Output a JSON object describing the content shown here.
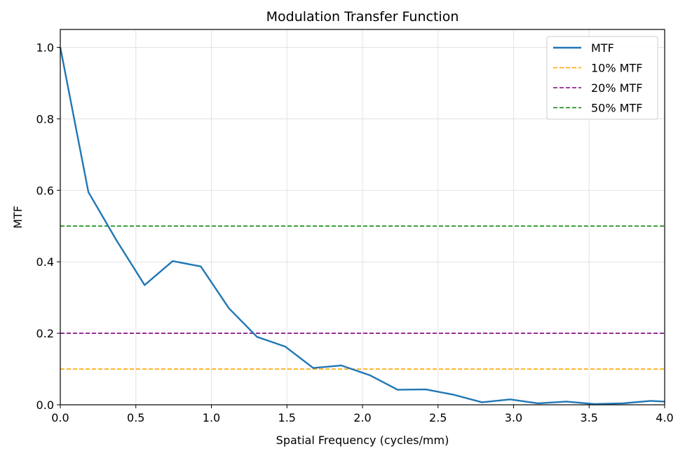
{
  "chart_data": {
    "type": "line",
    "title": "Modulation Transfer Function",
    "xlabel": "Spatial Frequency (cycles/mm)",
    "ylabel": "MTF",
    "xlim": [
      0.0,
      4.0
    ],
    "ylim": [
      0.0,
      1.05
    ],
    "x_ticks": [
      "0.0",
      "0.5",
      "1.0",
      "1.5",
      "2.0",
      "2.5",
      "3.0",
      "3.5",
      "4.0"
    ],
    "y_ticks": [
      "0.0",
      "0.2",
      "0.4",
      "0.6",
      "0.8",
      "1.0"
    ],
    "grid": true,
    "legend_position": "top-right",
    "series": [
      {
        "name": "MTF",
        "style": "solid",
        "color": "#1f77b4",
        "x": [
          0.0,
          0.186,
          0.372,
          0.558,
          0.744,
          0.93,
          1.116,
          1.302,
          1.488,
          1.674,
          1.86,
          2.047,
          2.233,
          2.419,
          2.605,
          2.791,
          2.977,
          3.163,
          3.349,
          3.535,
          3.721,
          3.907,
          4.0
        ],
        "y": [
          1.0,
          0.595,
          0.46,
          0.335,
          0.402,
          0.387,
          0.27,
          0.19,
          0.163,
          0.103,
          0.11,
          0.083,
          0.042,
          0.043,
          0.028,
          0.007,
          0.015,
          0.004,
          0.009,
          0.002,
          0.004,
          0.011,
          0.009
        ]
      },
      {
        "name": "10% MTF",
        "style": "dashed",
        "color": "#ffa500",
        "y_const": 0.1
      },
      {
        "name": "20% MTF",
        "style": "dashed",
        "color": "#800080",
        "y_const": 0.2
      },
      {
        "name": "50% MTF",
        "style": "dashed",
        "color": "#008000",
        "y_const": 0.5
      }
    ]
  }
}
